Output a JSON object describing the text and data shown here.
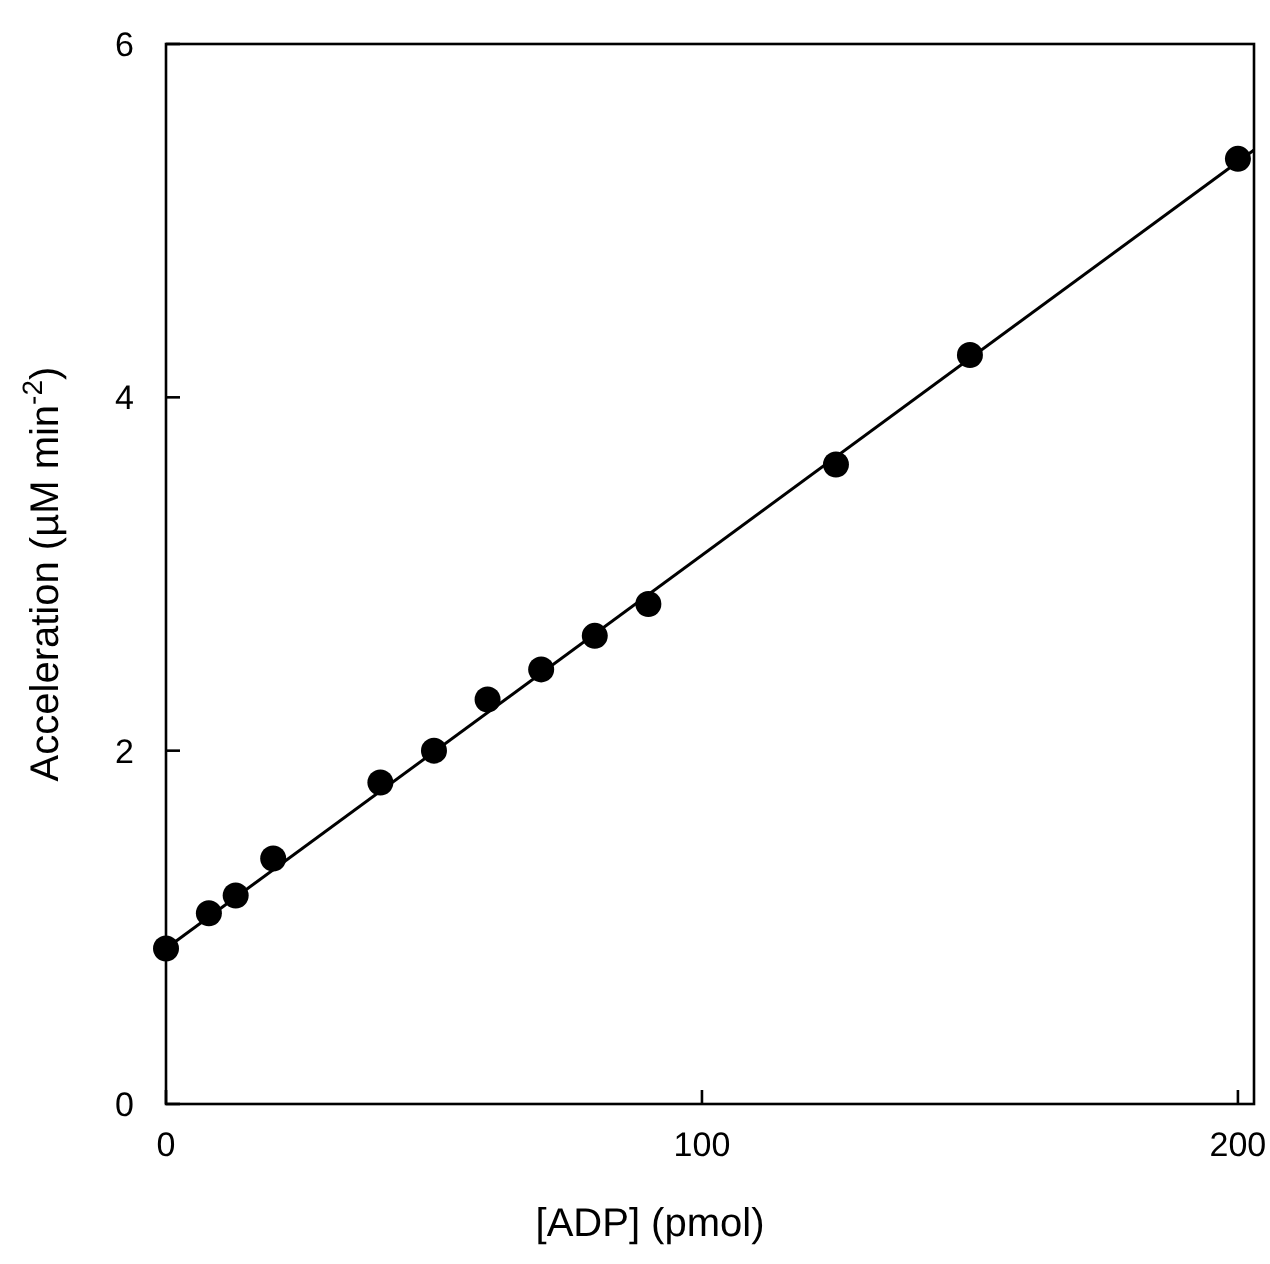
{
  "chart_data": {
    "type": "scatter",
    "xlabel": "[ADP]  (pmol)",
    "ylabel": "Acceleration (µM min$^{-2}$)",
    "xlim": [
      0,
      203
    ],
    "ylim": [
      0,
      6
    ],
    "xticks": [
      0,
      100,
      200
    ],
    "yticks": [
      0,
      2,
      4,
      6
    ],
    "grid": false,
    "marker": "circle",
    "series": [
      {
        "color": "#000000",
        "x": [
          0,
          8,
          13,
          20,
          40,
          50,
          60,
          70,
          80,
          90,
          125,
          150,
          200
        ],
        "values": [
          0.88,
          1.08,
          1.18,
          1.39,
          1.82,
          2.0,
          2.29,
          2.46,
          2.65,
          2.83,
          3.62,
          4.24,
          5.35
        ]
      },
      {
        "type": "line",
        "color": "#000000",
        "marker": "none",
        "line_style": "solid",
        "x": [
          0,
          203
        ],
        "values": [
          0.88,
          5.4
        ]
      }
    ]
  }
}
